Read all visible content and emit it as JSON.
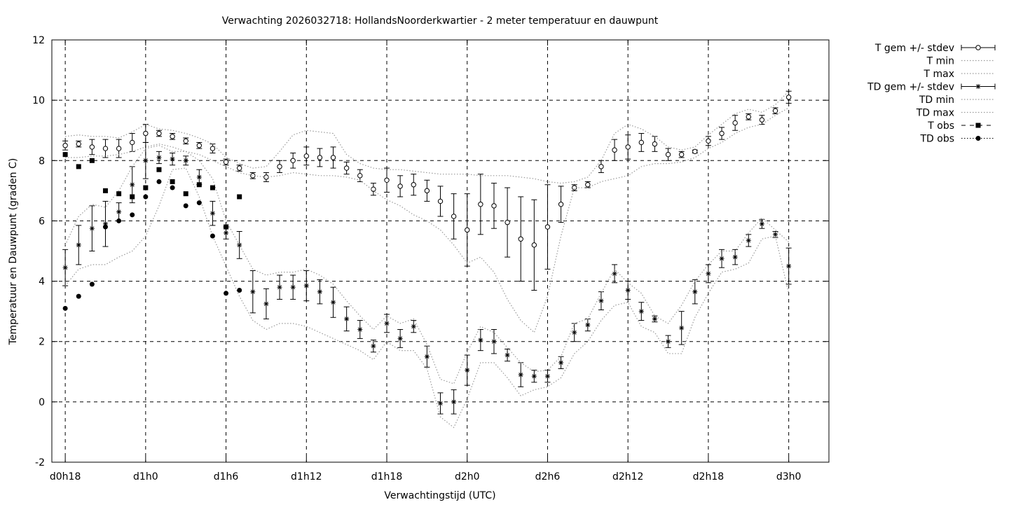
{
  "chart_data": {
    "type": "line",
    "title": "Verwachting 2026032718: HollandsNoorderkwartier - 2 meter temperatuur en dauwpunt",
    "xlabel": "Verwachtingstijd (UTC)",
    "ylabel": "Temperatuur en Dauwpunt (graden C)",
    "xlim": [
      17,
      75
    ],
    "ylim": [
      -2,
      12
    ],
    "grid": true,
    "legend_position": "right-outside",
    "x_ticks": [
      {
        "value": 18,
        "label": "d0h18"
      },
      {
        "value": 24,
        "label": "d1h0"
      },
      {
        "value": 30,
        "label": "d1h6"
      },
      {
        "value": 36,
        "label": "d1h12"
      },
      {
        "value": 42,
        "label": "d1h18"
      },
      {
        "value": 48,
        "label": "d2h0"
      },
      {
        "value": 54,
        "label": "d2h6"
      },
      {
        "value": 60,
        "label": "d2h12"
      },
      {
        "value": 66,
        "label": "d2h18"
      },
      {
        "value": 72,
        "label": "d3h0"
      }
    ],
    "y_ticks": [
      -2,
      0,
      2,
      4,
      6,
      8,
      10,
      12
    ],
    "x": [
      18,
      19,
      20,
      21,
      22,
      23,
      24,
      25,
      26,
      27,
      28,
      29,
      30,
      31,
      32,
      33,
      34,
      35,
      36,
      37,
      38,
      39,
      40,
      41,
      42,
      43,
      44,
      45,
      46,
      47,
      48,
      49,
      50,
      51,
      52,
      53,
      54,
      55,
      56,
      57,
      58,
      59,
      60,
      61,
      62,
      63,
      64,
      65,
      66,
      67,
      68,
      69,
      70,
      71,
      72
    ],
    "series": [
      {
        "name": "T gem +/- stdev",
        "style": "errorbar-open-circle",
        "values": [
          8.5,
          8.55,
          8.45,
          8.4,
          8.4,
          8.6,
          8.9,
          8.9,
          8.8,
          8.65,
          8.5,
          8.4,
          7.95,
          7.75,
          7.5,
          7.45,
          7.8,
          8.0,
          8.15,
          8.1,
          8.1,
          7.75,
          7.5,
          7.05,
          7.35,
          7.15,
          7.2,
          7.0,
          6.65,
          6.15,
          5.7,
          6.55,
          6.5,
          5.95,
          5.4,
          5.2,
          5.8,
          6.55,
          7.1,
          7.2,
          7.8,
          8.35,
          8.45,
          8.6,
          8.55,
          8.2,
          8.2,
          8.3,
          8.65,
          8.9,
          9.25,
          9.45,
          9.35,
          9.65,
          10.1
        ],
        "stdev": [
          0.15,
          0.1,
          0.25,
          0.3,
          0.3,
          0.3,
          0.3,
          0.1,
          0.1,
          0.1,
          0.1,
          0.15,
          0.1,
          0.1,
          0.1,
          0.15,
          0.2,
          0.25,
          0.3,
          0.3,
          0.35,
          0.2,
          0.2,
          0.2,
          0.4,
          0.35,
          0.35,
          0.35,
          0.5,
          0.75,
          1.2,
          1.0,
          0.75,
          1.15,
          1.4,
          1.5,
          1.4,
          0.6,
          0.1,
          0.1,
          0.2,
          0.35,
          0.4,
          0.3,
          0.25,
          0.2,
          0.1,
          0.05,
          0.15,
          0.2,
          0.25,
          0.1,
          0.15,
          0.1,
          0.2
        ]
      },
      {
        "name": "T min",
        "style": "dotted",
        "values": [
          8.1,
          8.1,
          8.15,
          8.15,
          8.2,
          8.3,
          8.45,
          8.55,
          8.45,
          8.3,
          8.2,
          8.0,
          7.8,
          7.6,
          7.5,
          7.45,
          7.5,
          7.6,
          7.55,
          7.5,
          7.5,
          7.45,
          7.35,
          7.0,
          6.7,
          6.5,
          6.2,
          6.0,
          5.7,
          5.2,
          4.6,
          4.8,
          4.3,
          3.4,
          2.7,
          2.3,
          3.5,
          5.5,
          7.1,
          7.1,
          7.3,
          7.4,
          7.5,
          7.8,
          7.9,
          7.9,
          7.95,
          8.1,
          8.4,
          8.6,
          8.9,
          9.1,
          9.2,
          9.5,
          9.75
        ]
      },
      {
        "name": "T max",
        "style": "dotted",
        "values": [
          8.8,
          8.85,
          8.8,
          8.8,
          8.75,
          8.95,
          9.2,
          9.05,
          9.0,
          8.9,
          8.75,
          8.55,
          8.1,
          7.9,
          7.75,
          7.8,
          8.3,
          8.85,
          9.0,
          8.95,
          8.9,
          8.2,
          7.9,
          7.75,
          7.7,
          7.7,
          7.65,
          7.6,
          7.55,
          7.55,
          7.55,
          7.5,
          7.5,
          7.5,
          7.45,
          7.4,
          7.3,
          7.25,
          7.3,
          7.45,
          8.0,
          8.9,
          9.2,
          9.05,
          8.8,
          8.45,
          8.35,
          8.45,
          8.85,
          9.2,
          9.55,
          9.7,
          9.6,
          9.85,
          10.3
        ]
      },
      {
        "name": "TD gem +/- stdev",
        "style": "errorbar-star",
        "values": [
          4.45,
          5.2,
          5.75,
          5.9,
          6.3,
          7.2,
          8.0,
          8.1,
          8.05,
          8.0,
          7.45,
          6.25,
          5.6,
          5.2,
          3.65,
          3.25,
          3.8,
          3.8,
          3.85,
          3.65,
          3.3,
          2.75,
          2.4,
          1.85,
          2.6,
          2.1,
          2.5,
          1.5,
          -0.05,
          0.0,
          1.05,
          2.05,
          2.0,
          1.55,
          0.9,
          0.85,
          0.85,
          1.3,
          2.3,
          2.55,
          3.35,
          4.25,
          3.7,
          3.0,
          2.75,
          2.0,
          2.45,
          3.65,
          4.25,
          4.75,
          4.8,
          5.35,
          5.9,
          5.55,
          4.5
        ],
        "stdev": [
          0.6,
          0.65,
          0.75,
          0.75,
          0.3,
          0.6,
          0.6,
          0.2,
          0.2,
          0.15,
          0.25,
          0.4,
          0.2,
          0.45,
          0.7,
          0.5,
          0.4,
          0.4,
          0.5,
          0.4,
          0.5,
          0.4,
          0.3,
          0.2,
          0.3,
          0.3,
          0.2,
          0.35,
          0.35,
          0.4,
          0.5,
          0.35,
          0.4,
          0.2,
          0.4,
          0.2,
          0.2,
          0.2,
          0.3,
          0.2,
          0.3,
          0.3,
          0.3,
          0.3,
          0.1,
          0.2,
          0.55,
          0.4,
          0.3,
          0.3,
          0.25,
          0.2,
          0.15,
          0.1,
          0.6
        ]
      },
      {
        "name": "TD min",
        "style": "dotted",
        "values": [
          3.85,
          4.4,
          4.55,
          4.55,
          4.8,
          5.0,
          5.5,
          6.5,
          7.7,
          7.75,
          6.8,
          5.5,
          4.5,
          3.5,
          2.7,
          2.4,
          2.6,
          2.6,
          2.5,
          2.3,
          2.1,
          1.9,
          1.7,
          1.4,
          2.0,
          1.7,
          1.7,
          1.1,
          -0.5,
          -0.85,
          0.1,
          1.3,
          1.3,
          0.8,
          0.2,
          0.4,
          0.5,
          0.8,
          1.6,
          2.0,
          2.7,
          3.2,
          3.3,
          2.5,
          2.3,
          1.6,
          1.6,
          2.8,
          3.6,
          4.3,
          4.4,
          4.6,
          5.4,
          5.5,
          3.6
        ]
      },
      {
        "name": "TD max",
        "style": "dotted",
        "values": [
          5.2,
          6.15,
          6.55,
          6.45,
          7.0,
          7.8,
          8.4,
          8.5,
          8.3,
          8.3,
          8.0,
          7.4,
          6.0,
          5.2,
          4.4,
          4.2,
          4.3,
          4.3,
          4.4,
          4.2,
          3.9,
          3.35,
          2.85,
          2.4,
          2.85,
          2.6,
          2.75,
          1.9,
          0.75,
          0.6,
          1.65,
          2.5,
          2.3,
          1.8,
          1.3,
          1.0,
          1.05,
          1.5,
          2.6,
          2.75,
          3.6,
          4.4,
          3.95,
          3.6,
          2.85,
          2.6,
          3.2,
          4.0,
          4.55,
          5.0,
          5.0,
          5.6,
          6.1,
          5.7,
          5.3
        ]
      },
      {
        "name": "T obs",
        "style": "points-square",
        "values": [
          8.2,
          7.8,
          8.0,
          7.0,
          6.9,
          6.8,
          7.1,
          7.7,
          7.3,
          6.9,
          7.2,
          7.1,
          5.8,
          6.8,
          null,
          null,
          null,
          null,
          null,
          null,
          null,
          null,
          null,
          null,
          null,
          null,
          null,
          null,
          null,
          null,
          null,
          null,
          null,
          null,
          null,
          null,
          null,
          null,
          null,
          null,
          null,
          null,
          null,
          null,
          null,
          null,
          null,
          null,
          null,
          null,
          null,
          null,
          null,
          null,
          null
        ]
      },
      {
        "name": "TD obs",
        "style": "points-circle",
        "values": [
          3.1,
          3.5,
          3.9,
          5.8,
          6.0,
          6.2,
          6.8,
          7.3,
          7.1,
          6.5,
          6.6,
          5.5,
          3.6,
          3.7,
          null,
          null,
          null,
          null,
          null,
          null,
          null,
          null,
          null,
          null,
          null,
          null,
          null,
          null,
          null,
          null,
          null,
          null,
          null,
          null,
          null,
          null,
          null,
          null,
          null,
          null,
          null,
          null,
          null,
          null,
          null,
          null,
          null,
          null,
          null,
          null,
          null,
          null,
          null,
          null,
          null
        ]
      }
    ]
  }
}
